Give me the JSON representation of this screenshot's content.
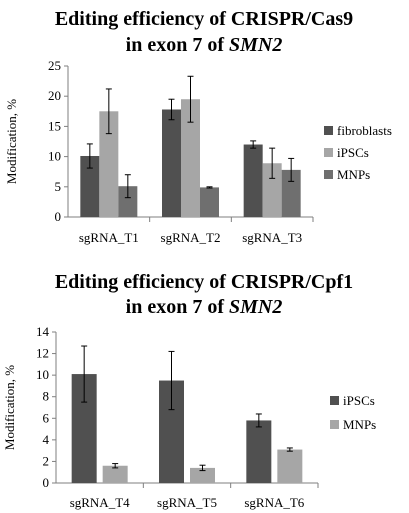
{
  "chart_data": [
    {
      "type": "bar",
      "title_line1": "Editing efficiency of CRISPR/Cas9",
      "title_line2_prefix": "in exon 7  of ",
      "title_gene": "SMN2",
      "xlabel": "",
      "ylabel": "Modification, %",
      "ylim": [
        0,
        25
      ],
      "yticks": [
        "0",
        "5",
        "10",
        "15",
        "20",
        "25"
      ],
      "grid": false,
      "legend_position": "right",
      "categories": [
        "sgRNA_T1",
        "sgRNA_T2",
        "sgRNA_T3"
      ],
      "series": [
        {
          "name": "fibroblasts",
          "color": "#505050",
          "values": [
            10.1,
            17.8,
            12.0
          ],
          "errors": [
            2.0,
            1.7,
            0.6
          ]
        },
        {
          "name": "iPSCs",
          "color": "#a6a6a6",
          "values": [
            17.5,
            19.5,
            8.9
          ],
          "errors": [
            3.7,
            3.8,
            2.5
          ]
        },
        {
          "name": "MNPs",
          "color": "#6f6f6f",
          "values": [
            5.1,
            4.9,
            7.8
          ],
          "errors": [
            1.9,
            0.1,
            1.9
          ]
        }
      ]
    },
    {
      "type": "bar",
      "title_line1": "Editing efficiency of CRISPR/Cpf1",
      "title_line2_prefix": "in exon 7 of ",
      "title_gene": "SMN2",
      "xlabel": "",
      "ylabel": "Modification, %",
      "ylim": [
        0,
        14
      ],
      "yticks": [
        "0",
        "2",
        "4",
        "6",
        "8",
        "10",
        "12",
        "14"
      ],
      "grid": false,
      "legend_position": "right",
      "categories": [
        "sgRNA_T4",
        "sgRNA_T5",
        "sgRNA_T6"
      ],
      "series": [
        {
          "name": "iPSCs",
          "color": "#505050",
          "values": [
            10.1,
            9.5,
            5.8
          ],
          "errors": [
            2.6,
            2.7,
            0.6
          ]
        },
        {
          "name": "MNPs",
          "color": "#a6a6a6",
          "values": [
            1.6,
            1.4,
            3.1
          ],
          "errors": [
            0.2,
            0.25,
            0.15
          ]
        }
      ]
    }
  ]
}
